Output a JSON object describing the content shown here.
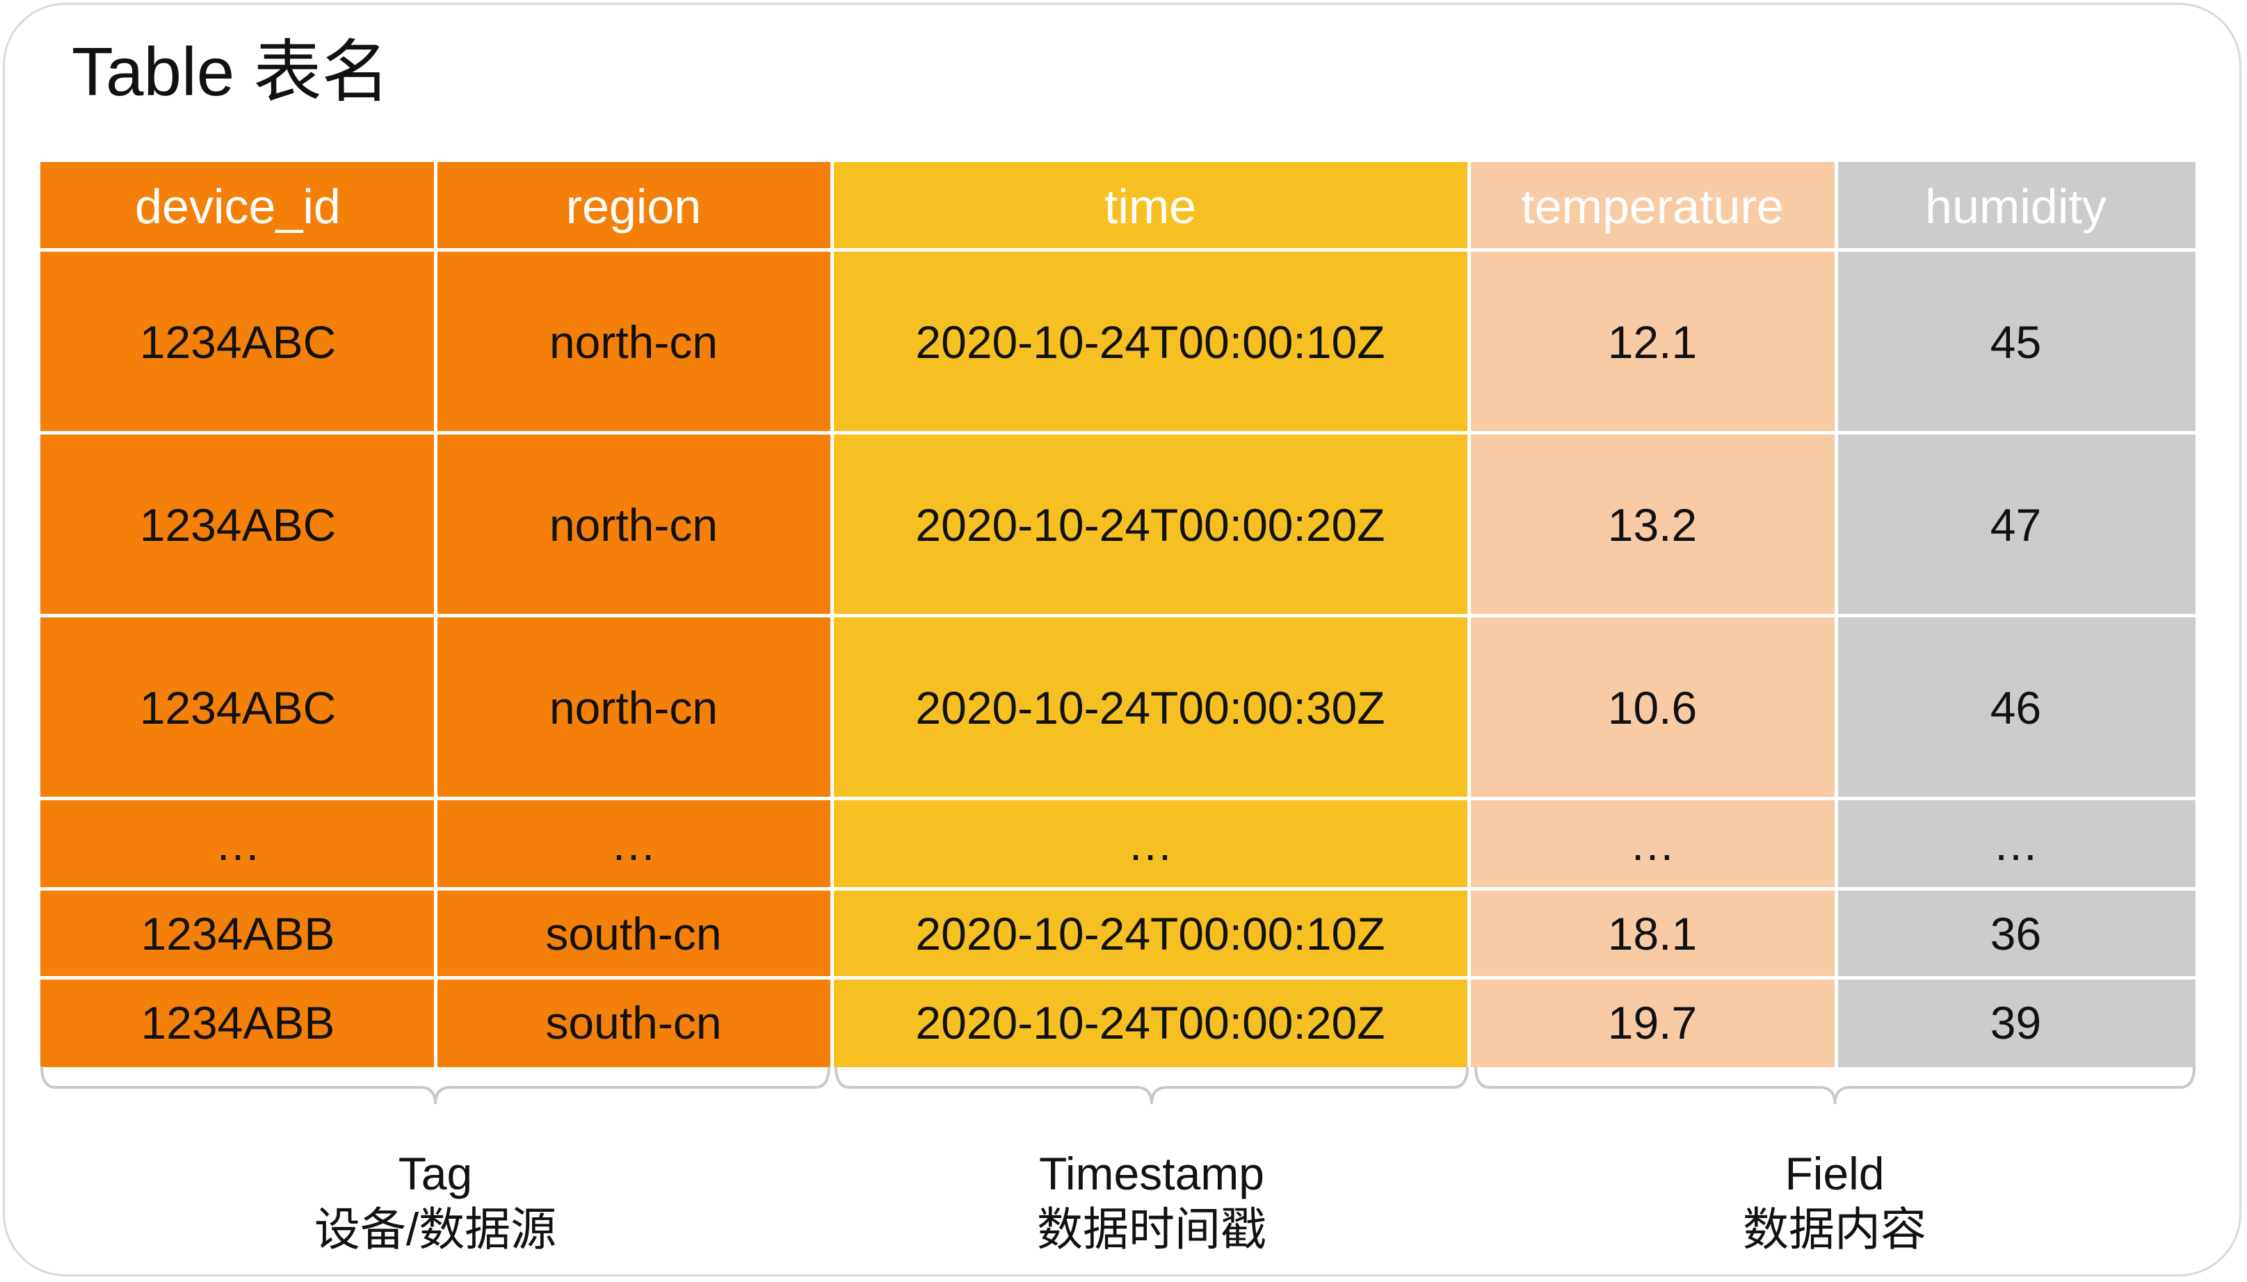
{
  "title": "Table 表名",
  "colors": {
    "tag": "#f4800a",
    "timestamp": "#f7c022",
    "temperature": "#f8cba4",
    "humidity": "#cccccc",
    "header_text": "#ffffff",
    "cell_text": "#111111",
    "brace": "#c9c9c9"
  },
  "columns": [
    "device_id",
    "region",
    "time",
    "temperature",
    "humidity"
  ],
  "rows": [
    [
      "1234ABC",
      "north-cn",
      "2020-10-24T00:00:10Z",
      "12.1",
      "45"
    ],
    [
      "1234ABC",
      "north-cn",
      "2020-10-24T00:00:20Z",
      "13.2",
      "47"
    ],
    [
      "1234ABC",
      "north-cn",
      "2020-10-24T00:00:30Z",
      "10.6",
      "46"
    ],
    [
      "…",
      "…",
      "…",
      "…",
      "…"
    ],
    [
      "1234ABB",
      "south-cn",
      "2020-10-24T00:00:10Z",
      "18.1",
      "36"
    ],
    [
      "1234ABB",
      "south-cn",
      "2020-10-24T00:00:20Z",
      "19.7",
      "39"
    ]
  ],
  "groups": [
    {
      "label": "Tag",
      "sublabel": "设备/数据源"
    },
    {
      "label": "Timestamp",
      "sublabel": "数据时间戳"
    },
    {
      "label": "Field",
      "sublabel": "数据内容"
    }
  ]
}
